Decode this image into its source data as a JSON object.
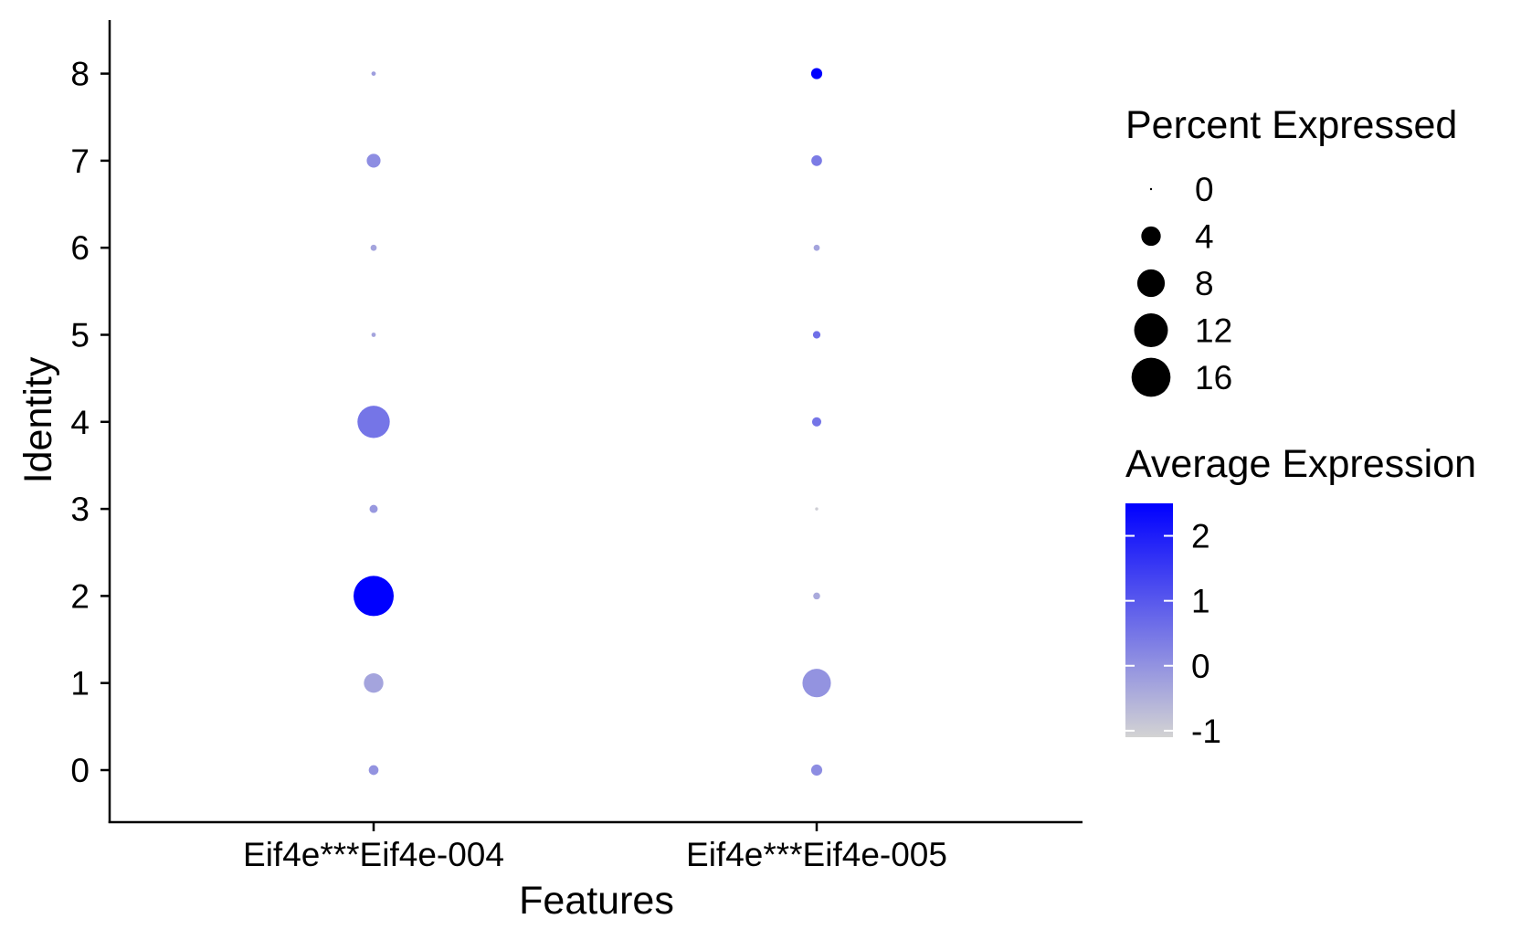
{
  "chart_data": {
    "type": "scatter",
    "subtype": "dot-plot",
    "xlabel": "Features",
    "ylabel": "Identity",
    "categories": [
      "Eif4e***Eif4e-004",
      "Eif4e***Eif4e-005"
    ],
    "identities": [
      "0",
      "1",
      "2",
      "3",
      "4",
      "5",
      "6",
      "7",
      "8"
    ],
    "points": [
      {
        "feature": "Eif4e***Eif4e-004",
        "identity": "0",
        "pct_exp": 1.0,
        "avg_exp": 0.0
      },
      {
        "feature": "Eif4e***Eif4e-004",
        "identity": "1",
        "pct_exp": 4.0,
        "avg_exp": -0.3
      },
      {
        "feature": "Eif4e***Eif4e-004",
        "identity": "2",
        "pct_exp": 17.0,
        "avg_exp": 2.5
      },
      {
        "feature": "Eif4e***Eif4e-004",
        "identity": "3",
        "pct_exp": 0.7,
        "avg_exp": -0.1
      },
      {
        "feature": "Eif4e***Eif4e-004",
        "identity": "4",
        "pct_exp": 11.0,
        "avg_exp": 0.5
      },
      {
        "feature": "Eif4e***Eif4e-004",
        "identity": "5",
        "pct_exp": 0.2,
        "avg_exp": -0.3
      },
      {
        "feature": "Eif4e***Eif4e-004",
        "identity": "6",
        "pct_exp": 0.4,
        "avg_exp": -0.3
      },
      {
        "feature": "Eif4e***Eif4e-004",
        "identity": "7",
        "pct_exp": 2.0,
        "avg_exp": 0.1
      },
      {
        "feature": "Eif4e***Eif4e-004",
        "identity": "8",
        "pct_exp": 0.2,
        "avg_exp": -0.2
      },
      {
        "feature": "Eif4e***Eif4e-005",
        "identity": "0",
        "pct_exp": 1.3,
        "avg_exp": 0.1
      },
      {
        "feature": "Eif4e***Eif4e-005",
        "identity": "1",
        "pct_exp": 8.5,
        "avg_exp": 0.0
      },
      {
        "feature": "Eif4e***Eif4e-005",
        "identity": "2",
        "pct_exp": 0.5,
        "avg_exp": -0.4
      },
      {
        "feature": "Eif4e***Eif4e-005",
        "identity": "3",
        "pct_exp": 0.1,
        "avg_exp": -1.0
      },
      {
        "feature": "Eif4e***Eif4e-005",
        "identity": "4",
        "pct_exp": 0.9,
        "avg_exp": 0.5
      },
      {
        "feature": "Eif4e***Eif4e-005",
        "identity": "5",
        "pct_exp": 0.6,
        "avg_exp": 0.6
      },
      {
        "feature": "Eif4e***Eif4e-005",
        "identity": "6",
        "pct_exp": 0.4,
        "avg_exp": -0.3
      },
      {
        "feature": "Eif4e***Eif4e-005",
        "identity": "7",
        "pct_exp": 1.2,
        "avg_exp": 0.4
      },
      {
        "feature": "Eif4e***Eif4e-005",
        "identity": "8",
        "pct_exp": 1.3,
        "avg_exp": 2.5
      }
    ],
    "size_legend": {
      "title": "Percent Expressed",
      "breaks": [
        0,
        4,
        8,
        12,
        16
      ],
      "labels": [
        "0",
        "4",
        "8",
        "12",
        "16"
      ]
    },
    "color_legend": {
      "title": "Average Expression",
      "range": [
        -1.1,
        2.5
      ],
      "breaks": [
        2,
        1,
        0,
        -1
      ],
      "labels": [
        "2",
        "1",
        "0",
        "-1"
      ],
      "low_color": "#d3d3d3",
      "high_color": "#0000ff"
    },
    "grid": false,
    "legend_position": "right"
  }
}
